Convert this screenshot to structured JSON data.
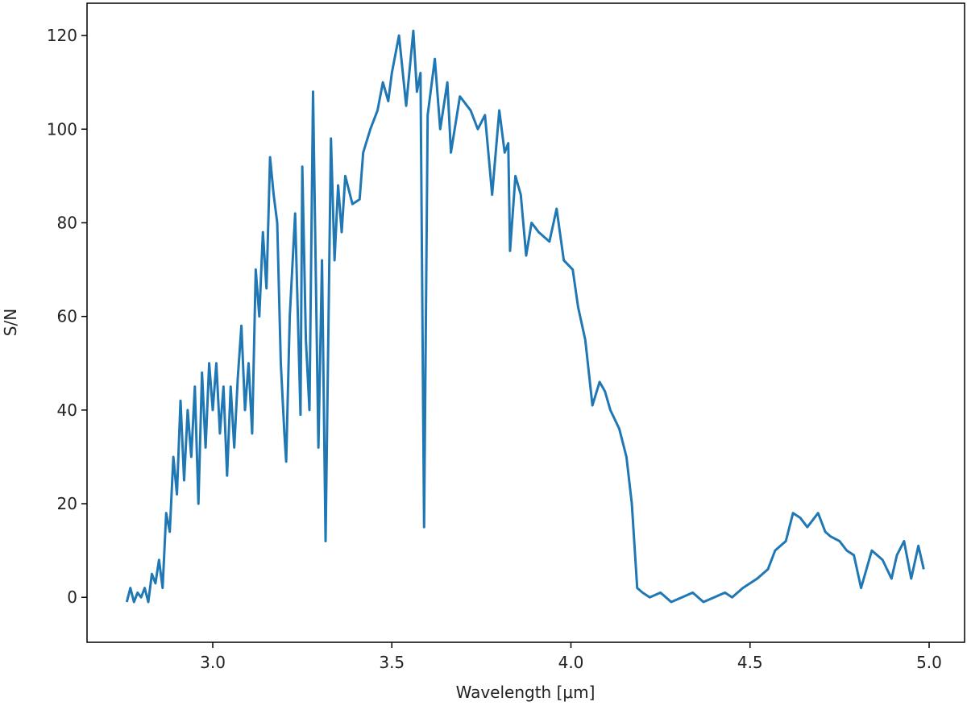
{
  "chart_data": {
    "type": "line",
    "xlabel": "Wavelength [μm]",
    "ylabel": "S/N",
    "xlim": [
      2.649,
      5.099
    ],
    "ylim": [
      -9.6,
      126.9
    ],
    "xticks": [
      {
        "value": 3,
        "label": "3.0"
      },
      {
        "value": 3.5,
        "label": "3.5"
      },
      {
        "value": 4,
        "label": "4.0"
      },
      {
        "value": 4.5,
        "label": "4.5"
      },
      {
        "value": 5,
        "label": "5.0"
      }
    ],
    "yticks": [
      0,
      20,
      40,
      60,
      80,
      100,
      120
    ],
    "series": [
      {
        "color": "#1f77b4",
        "x": [
          2.76,
          2.77,
          2.78,
          2.79,
          2.8,
          2.81,
          2.82,
          2.83,
          2.84,
          2.85,
          2.86,
          2.87,
          2.88,
          2.89,
          2.9,
          2.91,
          2.92,
          2.93,
          2.94,
          2.95,
          2.96,
          2.97,
          2.98,
          2.99,
          3.0,
          3.01,
          3.02,
          3.03,
          3.04,
          3.05,
          3.06,
          3.07,
          3.08,
          3.09,
          3.1,
          3.11,
          3.12,
          3.13,
          3.14,
          3.15,
          3.16,
          3.17,
          3.18,
          3.19,
          3.2,
          3.205,
          3.215,
          3.23,
          3.245,
          3.25,
          3.26,
          3.27,
          3.28,
          3.295,
          3.305,
          3.315,
          3.33,
          3.34,
          3.35,
          3.36,
          3.37,
          3.39,
          3.41,
          3.42,
          3.44,
          3.46,
          3.475,
          3.49,
          3.5,
          3.52,
          3.54,
          3.56,
          3.57,
          3.58,
          3.59,
          3.6,
          3.62,
          3.635,
          3.645,
          3.655,
          3.665,
          3.69,
          3.72,
          3.74,
          3.76,
          3.78,
          3.8,
          3.815,
          3.825,
          3.83,
          3.845,
          3.86,
          3.875,
          3.89,
          3.91,
          3.94,
          3.96,
          3.98,
          4.005,
          4.02,
          4.04,
          4.06,
          4.08,
          4.095,
          4.11,
          4.135,
          4.155,
          4.17,
          4.185,
          4.2,
          4.22,
          4.25,
          4.28,
          4.31,
          4.34,
          4.37,
          4.4,
          4.43,
          4.45,
          4.48,
          4.52,
          4.55,
          4.57,
          4.6,
          4.62,
          4.64,
          4.66,
          4.69,
          4.71,
          4.725,
          4.75,
          4.77,
          4.79,
          4.81,
          4.84,
          4.87,
          4.895,
          4.91,
          4.93,
          4.95,
          4.97,
          4.985
        ],
        "values": [
          -1,
          2,
          -1,
          1,
          0,
          2,
          -1,
          5,
          3,
          8,
          2,
          18,
          14,
          30,
          22,
          42,
          25,
          40,
          30,
          45,
          20,
          48,
          32,
          50,
          40,
          50,
          35,
          45,
          26,
          45,
          32,
          47,
          58,
          40,
          50,
          35,
          70,
          60,
          78,
          66,
          94,
          86,
          80,
          50,
          35,
          29,
          60,
          82,
          39,
          92,
          55,
          40,
          108,
          32,
          72,
          12,
          98,
          72,
          88,
          78,
          90,
          84,
          85,
          95,
          100,
          104,
          110,
          106,
          112,
          120,
          105,
          121,
          108,
          112,
          15,
          103,
          115,
          100,
          105,
          110,
          95,
          107,
          104,
          100,
          103,
          86,
          104,
          95,
          97,
          74,
          90,
          86,
          73,
          80,
          78,
          76,
          83,
          72,
          70,
          62,
          55,
          41,
          46,
          44,
          40,
          36,
          30,
          20,
          2,
          1,
          0,
          1,
          -1,
          0,
          1,
          -1,
          0,
          1,
          0,
          2,
          4,
          6,
          10,
          12,
          18,
          17,
          15,
          18,
          14,
          13,
          12,
          10,
          9,
          2,
          10,
          8,
          4,
          9,
          12,
          4,
          11,
          6
        ]
      }
    ]
  }
}
